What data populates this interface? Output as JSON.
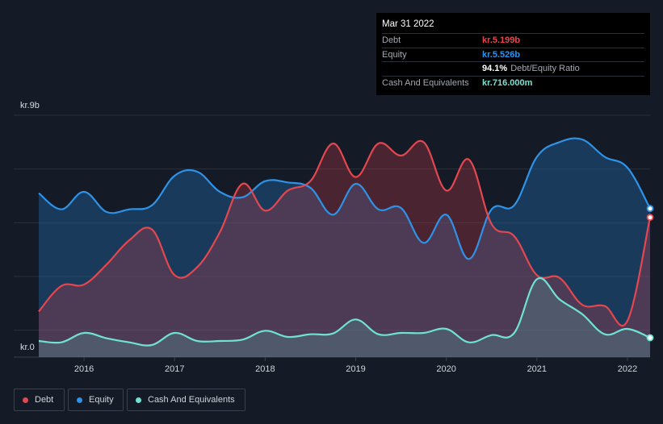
{
  "tooltip": {
    "date": "Mar 31 2022",
    "rows": [
      {
        "label": "Debt",
        "value": "kr.5.199b",
        "color": "#e4474f"
      },
      {
        "label": "Equity",
        "value": "kr.5.526b",
        "color": "#2e93e8"
      },
      {
        "label": "",
        "value": "94.1%",
        "suffix": "Debt/Equity Ratio",
        "color": "#ffffff"
      },
      {
        "label": "Cash And Equivalents",
        "value": "kr.716.000m",
        "color": "#7fe0d2"
      }
    ]
  },
  "legend": [
    {
      "label": "Debt",
      "color": "#e4474f"
    },
    {
      "label": "Equity",
      "color": "#2e93e8"
    },
    {
      "label": "Cash And Equivalents",
      "color": "#6fe3d3"
    }
  ],
  "chart_data": {
    "type": "area",
    "title": "",
    "xlabel": "",
    "ylabel": "",
    "y_top_label": "kr.9b",
    "y_bottom_label": "kr.0",
    "ylim": [
      0,
      9
    ],
    "xlim": [
      2015.5,
      2022.25
    ],
    "x_ticks": [
      2016,
      2017,
      2018,
      2019,
      2020,
      2021,
      2022
    ],
    "x_tick_labels": [
      "2016",
      "2017",
      "2018",
      "2019",
      "2020",
      "2021",
      "2022"
    ],
    "unit": "kr. billions",
    "series": [
      {
        "name": "Equity",
        "color": "#2e93e8",
        "x": [
          2015.5,
          2015.75,
          2016.0,
          2016.25,
          2016.5,
          2016.75,
          2017.0,
          2017.25,
          2017.5,
          2017.75,
          2018.0,
          2018.25,
          2018.5,
          2018.75,
          2019.0,
          2019.25,
          2019.5,
          2019.75,
          2020.0,
          2020.25,
          2020.5,
          2020.75,
          2021.0,
          2021.25,
          2021.5,
          2021.75,
          2022.0,
          2022.25
        ],
        "values": [
          6.1,
          5.5,
          6.15,
          5.4,
          5.5,
          5.65,
          6.75,
          6.9,
          6.15,
          5.95,
          6.55,
          6.5,
          6.3,
          5.3,
          6.45,
          5.5,
          5.55,
          4.25,
          5.3,
          3.65,
          5.5,
          5.65,
          7.45,
          8.0,
          8.1,
          7.45,
          7.05,
          5.53
        ]
      },
      {
        "name": "Debt",
        "color": "#e4474f",
        "x": [
          2015.5,
          2015.75,
          2016.0,
          2016.25,
          2016.5,
          2016.75,
          2017.0,
          2017.25,
          2017.5,
          2017.75,
          2018.0,
          2018.25,
          2018.5,
          2018.75,
          2019.0,
          2019.25,
          2019.5,
          2019.75,
          2020.0,
          2020.25,
          2020.5,
          2020.75,
          2021.0,
          2021.25,
          2021.5,
          2021.75,
          2022.0,
          2022.25
        ],
        "values": [
          1.7,
          2.65,
          2.7,
          3.45,
          4.35,
          4.75,
          3.05,
          3.35,
          4.65,
          6.45,
          5.45,
          6.2,
          6.55,
          7.95,
          6.7,
          7.95,
          7.5,
          8.0,
          6.2,
          7.35,
          4.95,
          4.5,
          3.05,
          2.95,
          1.95,
          1.9,
          1.35,
          5.2
        ]
      },
      {
        "name": "Cash And Equivalents",
        "color": "#6fe3d3",
        "x": [
          2015.5,
          2015.75,
          2016.0,
          2016.25,
          2016.5,
          2016.75,
          2017.0,
          2017.25,
          2017.5,
          2017.75,
          2018.0,
          2018.25,
          2018.5,
          2018.75,
          2019.0,
          2019.25,
          2019.5,
          2019.75,
          2020.0,
          2020.25,
          2020.5,
          2020.75,
          2021.0,
          2021.25,
          2021.5,
          2021.75,
          2022.0,
          2022.25
        ],
        "values": [
          0.6,
          0.55,
          0.9,
          0.7,
          0.55,
          0.45,
          0.9,
          0.6,
          0.6,
          0.65,
          0.98,
          0.75,
          0.85,
          0.88,
          1.4,
          0.85,
          0.9,
          0.9,
          1.05,
          0.55,
          0.82,
          0.9,
          2.9,
          2.15,
          1.6,
          0.85,
          1.05,
          0.72
        ]
      }
    ],
    "last_point": {
      "x": 2022.25,
      "Debt": 5.199,
      "Equity": 5.526,
      "Cash And Equivalents": 0.716
    }
  }
}
